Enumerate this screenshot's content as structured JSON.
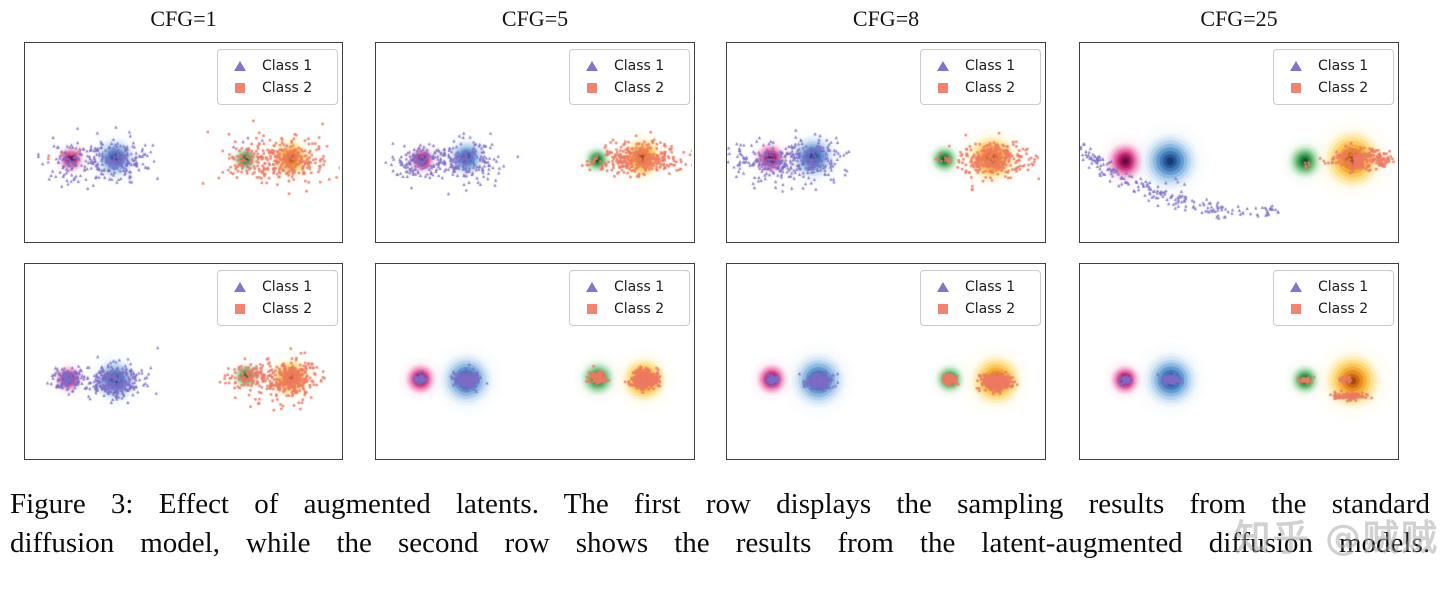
{
  "figure": {
    "columns": [
      {
        "title": "CFG=1"
      },
      {
        "title": "CFG=5"
      },
      {
        "title": "CFG=8"
      },
      {
        "title": "CFG=25"
      }
    ],
    "legend": {
      "class1": "Class 1",
      "class2": "Class 2",
      "class1_color": "#8374cb",
      "class2_color": "#f4826d"
    }
  },
  "caption": {
    "line1": "Figure 3: Effect of augmented latents. The first row displays the sampling results from the standard",
    "line2": "diffusion model, while the second row shows the results from the latent-augmented diffusion models."
  },
  "watermark": {
    "text": "知乎 @贼贼",
    "color": "#acacac"
  },
  "chart_data": {
    "type": "scatter",
    "title": "Effect of augmented latents",
    "rows": [
      "standard diffusion model samples",
      "latent-augmented diffusion model samples"
    ],
    "columns": [
      "CFG=1",
      "CFG=5",
      "CFG=8",
      "CFG=25"
    ],
    "axes": "hidden (no ticks, no axis labels)",
    "legend_entries": [
      {
        "label": "Class 1",
        "marker": "triangle",
        "color": "#8374cb"
      },
      {
        "label": "Class 2",
        "marker": "square",
        "color": "#f4826d"
      }
    ],
    "class_colors": {
      "1": "#7d6dc6",
      "2": "#ed7a64"
    },
    "palettes": {
      "magenta": [
        "#fbe4ef",
        "#f8c3dc",
        "#f29ac5",
        "#e76aa4",
        "#d23a85",
        "#b01b68",
        "#8a104f",
        "#5c0d3d"
      ],
      "blue": [
        "#ebf3fa",
        "#d6e7f6",
        "#b7d4ee",
        "#8fbbe2",
        "#639bd0",
        "#3f7ab8",
        "#27589a",
        "#163a72"
      ],
      "green": [
        "#eaf6eb",
        "#d2edd6",
        "#aedeb6",
        "#81ca8f",
        "#55b069",
        "#349350",
        "#1d7239",
        "#0f4f26"
      ],
      "orange": [
        "#fff8e0",
        "#feeeba",
        "#fde08e",
        "#fbcb60",
        "#f5ae3b",
        "#e78c22",
        "#cc6a14",
        "#9c4a0b"
      ]
    },
    "panels": [
      {
        "title": "CFG=1",
        "row": 1,
        "col": 1,
        "seed": 11,
        "blobs": [
          {
            "x": 0.146,
            "y": 0.59,
            "r": 0.04,
            "palette": "magenta"
          },
          {
            "x": 0.287,
            "y": 0.585,
            "r": 0.062,
            "palette": "blue"
          },
          {
            "x": 0.7,
            "y": 0.59,
            "r": 0.038,
            "palette": "green"
          },
          {
            "x": 0.845,
            "y": 0.585,
            "r": 0.058,
            "palette": "orange"
          }
        ],
        "clusters": [
          {
            "cls": "1",
            "cx": 0.287,
            "cy": 0.59,
            "sx": 0.048,
            "sy": 0.052,
            "n": 200
          },
          {
            "cls": "1",
            "cx": 0.146,
            "cy": 0.6,
            "sx": 0.03,
            "sy": 0.038,
            "n": 70
          },
          {
            "cls": "1",
            "cx": 0.22,
            "cy": 0.6,
            "sx": 0.095,
            "sy": 0.075,
            "n": 45
          },
          {
            "cls": "1",
            "cx": 0.7,
            "cy": 0.57,
            "sx": 0.045,
            "sy": 0.055,
            "n": 12
          },
          {
            "cls": "2",
            "cx": 0.845,
            "cy": 0.59,
            "sx": 0.05,
            "sy": 0.052,
            "n": 190
          },
          {
            "cls": "2",
            "cx": 0.72,
            "cy": 0.6,
            "sx": 0.04,
            "sy": 0.045,
            "n": 90
          },
          {
            "cls": "2",
            "cx": 0.8,
            "cy": 0.62,
            "sx": 0.095,
            "sy": 0.085,
            "n": 55
          },
          {
            "cls": "2",
            "cx": 0.135,
            "cy": 0.565,
            "sx": 0.045,
            "sy": 0.028,
            "n": 8
          }
        ]
      },
      {
        "title": "CFG=5",
        "row": 1,
        "col": 2,
        "seed": 22,
        "blobs": [
          {
            "x": 0.147,
            "y": 0.593,
            "r": 0.04,
            "palette": "magenta"
          },
          {
            "x": 0.287,
            "y": 0.583,
            "r": 0.056,
            "palette": "blue"
          },
          {
            "x": 0.7,
            "y": 0.593,
            "r": 0.041,
            "palette": "green"
          },
          {
            "x": 0.843,
            "y": 0.583,
            "r": 0.063,
            "palette": "orange"
          }
        ],
        "clusters": [
          {
            "cls": "1",
            "cx": 0.287,
            "cy": 0.59,
            "sx": 0.045,
            "sy": 0.048,
            "n": 170
          },
          {
            "cls": "1",
            "cx": 0.147,
            "cy": 0.6,
            "sx": 0.042,
            "sy": 0.042,
            "n": 130
          },
          {
            "cls": "1",
            "cx": 0.21,
            "cy": 0.615,
            "sx": 0.085,
            "sy": 0.05,
            "n": 60
          },
          {
            "cls": "2",
            "cx": 0.845,
            "cy": 0.585,
            "sx": 0.052,
            "sy": 0.042,
            "n": 200
          },
          {
            "cls": "2",
            "cx": 0.78,
            "cy": 0.6,
            "sx": 0.035,
            "sy": 0.035,
            "n": 60
          },
          {
            "cls": "2",
            "cx": 0.88,
            "cy": 0.6,
            "sx": 0.08,
            "sy": 0.045,
            "n": 50
          },
          {
            "cls": "2",
            "cx": 0.705,
            "cy": 0.61,
            "sx": 0.016,
            "sy": 0.018,
            "n": 15
          }
        ]
      },
      {
        "title": "CFG=8",
        "row": 1,
        "col": 3,
        "seed": 33,
        "blobs": [
          {
            "x": 0.138,
            "y": 0.585,
            "r": 0.047,
            "palette": "magenta"
          },
          {
            "x": 0.272,
            "y": 0.58,
            "r": 0.068,
            "palette": "blue"
          },
          {
            "x": 0.688,
            "y": 0.59,
            "r": 0.045,
            "palette": "green"
          },
          {
            "x": 0.838,
            "y": 0.585,
            "r": 0.075,
            "palette": "orange"
          }
        ],
        "clusters": [
          {
            "cls": "1",
            "cx": 0.27,
            "cy": 0.585,
            "sx": 0.046,
            "sy": 0.05,
            "n": 170
          },
          {
            "cls": "1",
            "cx": 0.12,
            "cy": 0.6,
            "sx": 0.055,
            "sy": 0.048,
            "n": 170
          },
          {
            "cls": "1",
            "cx": 0.2,
            "cy": 0.63,
            "sx": 0.08,
            "sy": 0.055,
            "n": 40
          },
          {
            "cls": "2",
            "cx": 0.838,
            "cy": 0.585,
            "sx": 0.055,
            "sy": 0.04,
            "n": 210
          },
          {
            "cls": "2",
            "cx": 0.885,
            "cy": 0.59,
            "sx": 0.075,
            "sy": 0.045,
            "n": 60
          },
          {
            "cls": "2",
            "cx": 0.69,
            "cy": 0.6,
            "sx": 0.016,
            "sy": 0.016,
            "n": 12
          },
          {
            "cls": "2",
            "cx": 0.83,
            "cy": 0.66,
            "sx": 0.06,
            "sy": 0.045,
            "n": 15
          }
        ]
      },
      {
        "title": "CFG=25",
        "row": 1,
        "col": 4,
        "seed": 44,
        "blobs": [
          {
            "x": 0.144,
            "y": 0.6,
            "r": 0.06,
            "palette": "magenta"
          },
          {
            "x": 0.285,
            "y": 0.6,
            "r": 0.088,
            "palette": "blue"
          },
          {
            "x": 0.7125,
            "y": 0.6,
            "r": 0.056,
            "palette": "green"
          },
          {
            "x": 0.8625,
            "y": 0.59,
            "r": 0.094,
            "palette": "orange"
          }
        ],
        "clusters": [
          {
            "cls": "1",
            "type": "arc",
            "cx": 0.553,
            "cy": -0.543,
            "r": 0.872,
            "a0": 96,
            "a1": 131,
            "jr": 0.014,
            "n": 185
          },
          {
            "cls": "1",
            "type": "arc",
            "cx": 0.553,
            "cy": -0.543,
            "r": 0.872,
            "a0": 85,
            "a1": 96,
            "jr": 0.009,
            "n": 30
          },
          {
            "cls": "1",
            "cx": 0.3,
            "cy": 0.72,
            "sx": 0.018,
            "sy": 0.015,
            "n": 4
          },
          {
            "cls": "2",
            "cx": 0.888,
            "cy": 0.59,
            "sx": 0.034,
            "sy": 0.03,
            "n": 170
          },
          {
            "cls": "2",
            "cx": 0.962,
            "cy": 0.595,
            "sx": 0.022,
            "sy": 0.02,
            "n": 35
          },
          {
            "cls": "2",
            "cx": 0.79,
            "cy": 0.6,
            "sx": 0.018,
            "sy": 0.014,
            "n": 10
          },
          {
            "cls": "2",
            "cx": 0.715,
            "cy": 0.615,
            "sx": 0.012,
            "sy": 0.012,
            "n": 6
          }
        ]
      },
      {
        "title": "CFG=1",
        "row": 2,
        "col": 1,
        "seed": 55,
        "blobs": [
          {
            "x": 0.138,
            "y": 0.595,
            "r": 0.042,
            "palette": "magenta"
          },
          {
            "x": 0.287,
            "y": 0.602,
            "r": 0.066,
            "palette": "blue"
          },
          {
            "x": 0.702,
            "y": 0.58,
            "r": 0.04,
            "palette": "green"
          },
          {
            "x": 0.843,
            "y": 0.59,
            "r": 0.06,
            "palette": "orange"
          }
        ],
        "clusters": [
          {
            "cls": "1",
            "cx": 0.138,
            "cy": 0.595,
            "sx": 0.02,
            "sy": 0.028,
            "n": 130
          },
          {
            "cls": "1",
            "cx": 0.287,
            "cy": 0.605,
            "sx": 0.04,
            "sy": 0.044,
            "n": 260
          },
          {
            "cls": "1",
            "cx": 0.22,
            "cy": 0.61,
            "sx": 0.055,
            "sy": 0.045,
            "n": 50
          },
          {
            "cls": "1",
            "cx": 0.42,
            "cy": 0.43,
            "sx": 0.003,
            "sy": 0.003,
            "n": 1
          },
          {
            "cls": "2",
            "cx": 0.845,
            "cy": 0.59,
            "sx": 0.042,
            "sy": 0.045,
            "n": 250
          },
          {
            "cls": "2",
            "cx": 0.715,
            "cy": 0.575,
            "sx": 0.028,
            "sy": 0.032,
            "n": 90
          },
          {
            "cls": "2",
            "cx": 0.8,
            "cy": 0.65,
            "sx": 0.065,
            "sy": 0.068,
            "n": 55
          },
          {
            "cls": "2",
            "cx": 0.655,
            "cy": 0.6,
            "sx": 0.028,
            "sy": 0.018,
            "n": 12
          }
        ]
      },
      {
        "title": "CFG=5",
        "row": 2,
        "col": 2,
        "seed": 66,
        "blobs": [
          {
            "x": 0.141,
            "y": 0.596,
            "r": 0.05,
            "palette": "magenta"
          },
          {
            "x": 0.287,
            "y": 0.6,
            "r": 0.082,
            "palette": "blue"
          },
          {
            "x": 0.702,
            "y": 0.593,
            "r": 0.056,
            "palette": "green"
          },
          {
            "x": 0.848,
            "y": 0.6,
            "r": 0.072,
            "palette": "orange"
          }
        ],
        "clusters": [
          {
            "cls": "1",
            "cx": 0.141,
            "cy": 0.597,
            "sx": 0.009,
            "sy": 0.012,
            "n": 90
          },
          {
            "cls": "1",
            "cx": 0.287,
            "cy": 0.6,
            "sx": 0.02,
            "sy": 0.021,
            "n": 240
          },
          {
            "cls": "2",
            "cx": 0.702,
            "cy": 0.59,
            "sx": 0.013,
            "sy": 0.016,
            "n": 110
          },
          {
            "cls": "2",
            "cx": 0.848,
            "cy": 0.6,
            "sx": 0.021,
            "sy": 0.023,
            "n": 260
          }
        ]
      },
      {
        "title": "CFG=8",
        "row": 2,
        "col": 3,
        "seed": 77,
        "blobs": [
          {
            "x": 0.142,
            "y": 0.597,
            "r": 0.05,
            "palette": "magenta"
          },
          {
            "x": 0.29,
            "y": 0.603,
            "r": 0.085,
            "palette": "blue"
          },
          {
            "x": 0.705,
            "y": 0.597,
            "r": 0.047,
            "palette": "green"
          },
          {
            "x": 0.852,
            "y": 0.603,
            "r": 0.082,
            "palette": "orange"
          }
        ],
        "clusters": [
          {
            "cls": "1",
            "cx": 0.142,
            "cy": 0.598,
            "sx": 0.009,
            "sy": 0.012,
            "n": 90
          },
          {
            "cls": "1",
            "cx": 0.29,
            "cy": 0.607,
            "sx": 0.021,
            "sy": 0.02,
            "n": 250
          },
          {
            "cls": "2",
            "cx": 0.705,
            "cy": 0.6,
            "sx": 0.012,
            "sy": 0.015,
            "n": 100
          },
          {
            "cls": "2",
            "cx": 0.853,
            "cy": 0.615,
            "sx": 0.024,
            "sy": 0.021,
            "n": 280
          }
        ]
      },
      {
        "title": "CFG=25",
        "row": 2,
        "col": 4,
        "seed": 88,
        "blobs": [
          {
            "x": 0.143,
            "y": 0.6,
            "r": 0.048,
            "palette": "magenta"
          },
          {
            "x": 0.288,
            "y": 0.6,
            "r": 0.085,
            "palette": "blue"
          },
          {
            "x": 0.7125,
            "y": 0.6,
            "r": 0.048,
            "palette": "green"
          },
          {
            "x": 0.8625,
            "y": 0.605,
            "r": 0.09,
            "palette": "orange"
          }
        ],
        "clusters": [
          {
            "cls": "1",
            "cx": 0.143,
            "cy": 0.6,
            "sx": 0.008,
            "sy": 0.01,
            "n": 70
          },
          {
            "cls": "1",
            "cx": 0.288,
            "cy": 0.6,
            "sx": 0.014,
            "sy": 0.011,
            "n": 130
          },
          {
            "cls": "2",
            "cx": 0.712,
            "cy": 0.6,
            "sx": 0.009,
            "sy": 0.008,
            "n": 50
          },
          {
            "cls": "2",
            "cx": 0.85,
            "cy": 0.685,
            "sx": 0.026,
            "sy": 0.01,
            "n": 90
          },
          {
            "cls": "2",
            "cx": 0.84,
            "cy": 0.6,
            "sx": 0.01,
            "sy": 0.009,
            "n": 25
          }
        ]
      }
    ]
  }
}
